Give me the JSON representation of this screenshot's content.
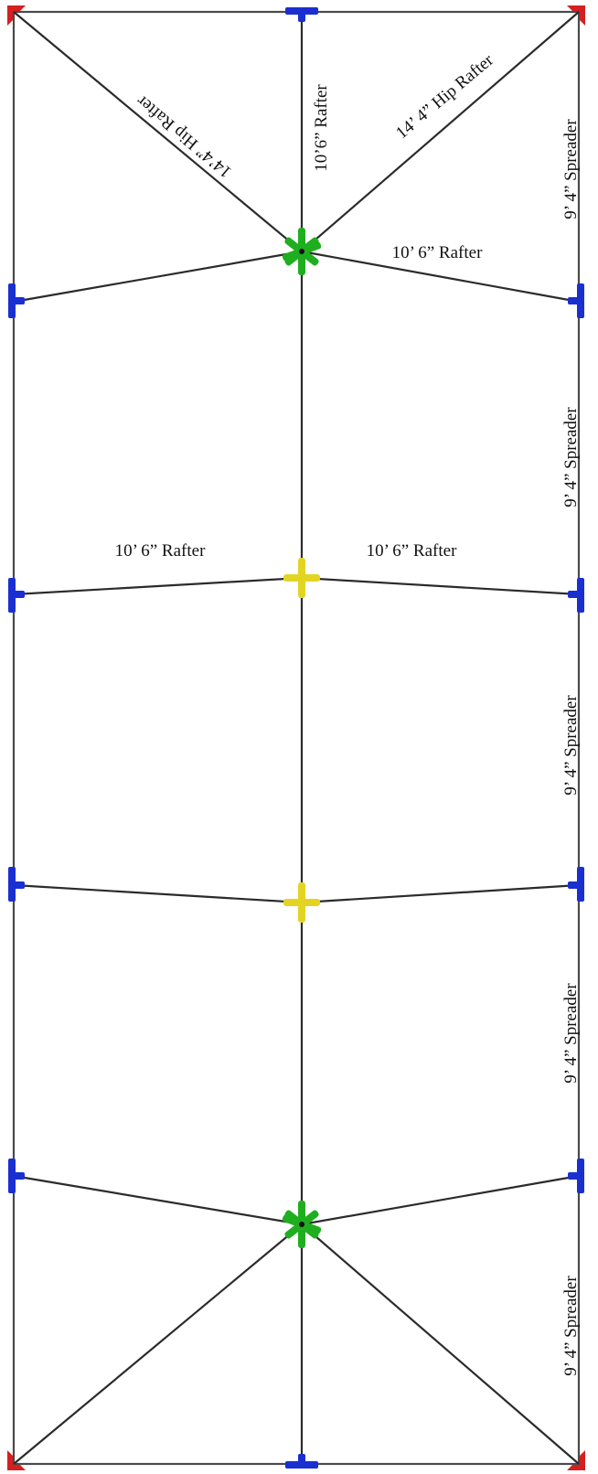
{
  "colors": {
    "corner_connector": "#d42020",
    "edge_connector": "#1a2fd0",
    "hub_hip": "#1fae1f",
    "hub_ridge": "#e3d424",
    "line": "#2b2b2b",
    "frame": "#4a4a4a"
  },
  "labels": {
    "hip_rafter_left": "14’4” Hip Rafter",
    "center_rafter_top": "10’6” Rafter",
    "hip_rafter_right": "14’ 4” Hip Rafter",
    "rafter_right_top": "10’ 6” Rafter",
    "rafter_left_mid": "10’ 6” Rafter",
    "rafter_right_mid": "10’ 6” Rafter",
    "spreader_1": "9’ 4” Spreader",
    "spreader_2": "9’ 4” Spreader",
    "spreader_3": "9’ 4” Spreader",
    "spreader_4": "9’ 4” Spreader",
    "spreader_5": "9’ 4” Spreader"
  }
}
